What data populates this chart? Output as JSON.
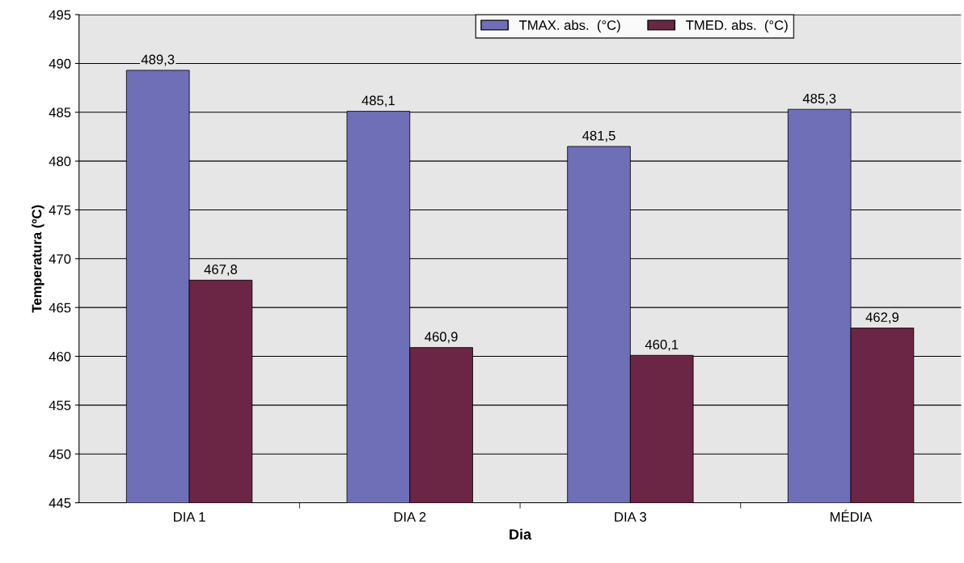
{
  "chart_data": {
    "type": "bar",
    "xlabel": "Dia",
    "ylabel": "Temperatura (ºC)",
    "categories": [
      "DIA 1",
      "DIA 2",
      "DIA 3",
      "MÉDIA"
    ],
    "series": [
      {
        "name": "TMAX. abs.  (°C)",
        "color": "#6f6fb8",
        "values": [
          489.3,
          485.1,
          481.5,
          485.3
        ],
        "value_labels": [
          "489,3",
          "485,1",
          "481,5",
          "485,3"
        ]
      },
      {
        "name": "TMED. abs.  (°C)",
        "color": "#6b2545",
        "values": [
          467.8,
          460.9,
          460.1,
          462.9
        ],
        "value_labels": [
          "467,8",
          "460,9",
          "460,1",
          "462,9"
        ]
      }
    ],
    "ylim": [
      445,
      495
    ],
    "yticks": [
      445,
      450,
      455,
      460,
      465,
      470,
      475,
      480,
      485,
      490,
      495
    ],
    "grid": "y",
    "legend": "top"
  }
}
